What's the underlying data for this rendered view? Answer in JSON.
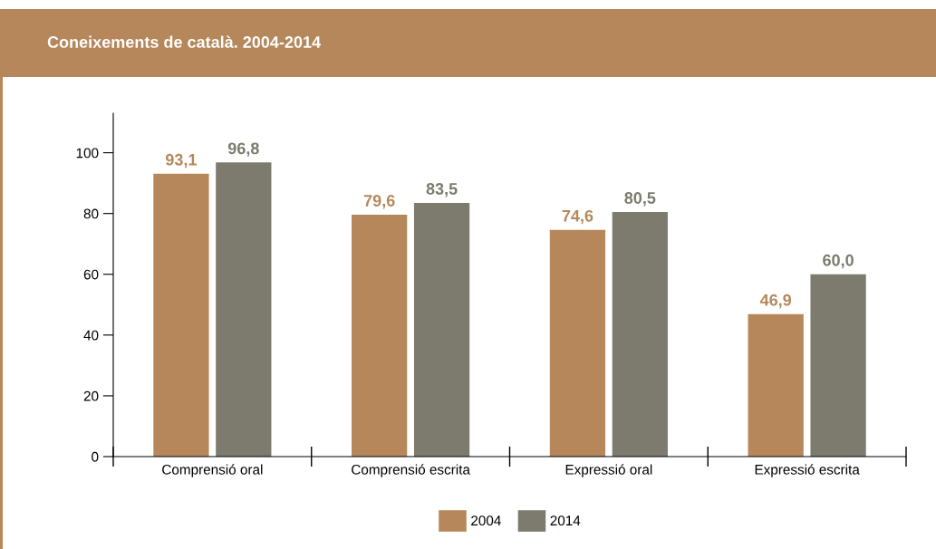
{
  "chart_data": {
    "type": "bar",
    "title": "Coneixements de català. 2004-2014",
    "categories": [
      "Comprensió oral",
      "Comprensió escrita",
      "Expressió oral",
      "Expressió escrita"
    ],
    "series": [
      {
        "name": "2004",
        "color": "#b5875a",
        "values": [
          93.1,
          79.6,
          74.6,
          46.9
        ],
        "value_labels": [
          "93,1",
          "79,6",
          "74,6",
          "46,9"
        ]
      },
      {
        "name": "2014",
        "color": "#7d7b6d",
        "values": [
          96.8,
          83.5,
          80.5,
          60.0
        ],
        "value_labels": [
          "96,8",
          "83,5",
          "80,5",
          "60,0"
        ]
      }
    ],
    "ylim": [
      0,
      113
    ],
    "yticks": [
      0,
      20,
      40,
      60,
      80,
      100
    ],
    "grid": false,
    "legend": "bottom"
  }
}
